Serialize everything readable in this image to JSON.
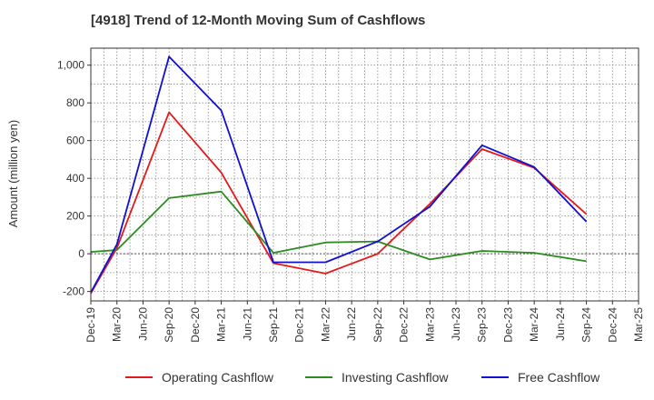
{
  "chart_data": {
    "type": "line",
    "title": "[4918]  Trend of 12-Month Moving Sum of Cashflows",
    "xlabel": "",
    "ylabel": "Amount (million yen)",
    "ylim": [
      -250,
      1090
    ],
    "yticks": [
      -200,
      0,
      200,
      400,
      600,
      800,
      1000
    ],
    "ytick_labels": [
      "-200",
      "0",
      "200",
      "400",
      "600",
      "800",
      "1,000"
    ],
    "categories": [
      "Dec-19",
      "Mar-20",
      "Jun-20",
      "Sep-20",
      "Dec-20",
      "Mar-21",
      "Jun-21",
      "Sep-21",
      "Dec-21",
      "Mar-22",
      "Jun-22",
      "Sep-22",
      "Dec-22",
      "Mar-23",
      "Jun-23",
      "Sep-23",
      "Dec-23",
      "Mar-24",
      "Jun-24",
      "Sep-24",
      "Dec-24",
      "Mar-25"
    ],
    "x_tick_labels": [
      "Dec-19",
      "Mar-20",
      "Jun-20",
      "Sep-20",
      "Dec-20",
      "Mar-21",
      "Jun-21",
      "Sep-21",
      "Dec-21",
      "Mar-22",
      "Jun-22",
      "Sep-22",
      "Dec-22",
      "Mar-23",
      "Jun-23",
      "Sep-23",
      "Dec-23",
      "Mar-24",
      "Jun-24",
      "Sep-24",
      "Dec-24",
      "Mar-25"
    ],
    "grid": true,
    "legend_position": "bottom",
    "series": [
      {
        "name": "Operating Cashflow",
        "color": "#e31a1c",
        "points": [
          [
            "Dec-19",
            -210
          ],
          [
            "Mar-20",
            30
          ],
          [
            "Sep-20",
            750
          ],
          [
            "Mar-21",
            430
          ],
          [
            "Sep-21",
            -50
          ],
          [
            "Mar-22",
            -105
          ],
          [
            "Sep-22",
            0
          ],
          [
            "Mar-23",
            265
          ],
          [
            "Sep-23",
            555
          ],
          [
            "Mar-24",
            455
          ],
          [
            "Sep-24",
            210
          ]
        ]
      },
      {
        "name": "Investing Cashflow",
        "color": "#2e8b22",
        "points": [
          [
            "Dec-19",
            10
          ],
          [
            "Mar-20",
            20
          ],
          [
            "Sep-20",
            295
          ],
          [
            "Mar-21",
            330
          ],
          [
            "Sep-21",
            5
          ],
          [
            "Mar-22",
            60
          ],
          [
            "Sep-22",
            65
          ],
          [
            "Mar-23",
            -30
          ],
          [
            "Sep-23",
            15
          ],
          [
            "Mar-24",
            5
          ],
          [
            "Sep-24",
            -40
          ]
        ]
      },
      {
        "name": "Free Cashflow",
        "color": "#1010d0",
        "points": [
          [
            "Dec-19",
            -205
          ],
          [
            "Mar-20",
            50
          ],
          [
            "Sep-20",
            1045
          ],
          [
            "Mar-21",
            760
          ],
          [
            "Sep-21",
            -45
          ],
          [
            "Mar-22",
            -45
          ],
          [
            "Sep-22",
            65
          ],
          [
            "Mar-23",
            250
          ],
          [
            "Sep-23",
            575
          ],
          [
            "Mar-24",
            460
          ],
          [
            "Sep-24",
            170
          ]
        ]
      }
    ]
  }
}
